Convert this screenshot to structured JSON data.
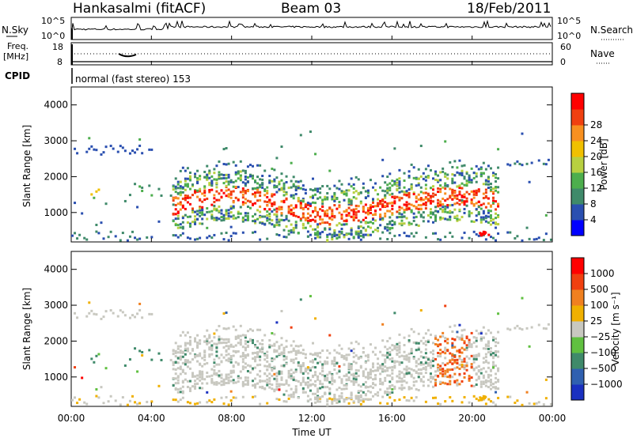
{
  "header": {
    "station": "Hankasalmi (fitACF)",
    "beam": "Beam 03",
    "date": "18/Feb/2011"
  },
  "top_panels": {
    "nsky_label": "N.Sky",
    "nsky_ticks": [
      "10^5",
      "10^0"
    ],
    "nsearch_label": "N.Search",
    "nsearch_ticks": [
      "10^5",
      "10^0"
    ],
    "freq_label": "Freq.",
    "freq_unit": "[MHz]",
    "freq_ticks": [
      "18",
      "8"
    ],
    "nave_label": "Nave",
    "nave_ticks": [
      "60",
      "0"
    ],
    "cpid_label": "CPID",
    "cpid_text": "normal (fast stereo) 153"
  },
  "chart_data": [
    {
      "type": "heatmap",
      "name": "power-panel",
      "ylabel": "Slant Range [km]",
      "xlabel": "Time UT",
      "ylim": [
        180,
        4500
      ],
      "xlim": [
        0,
        24
      ],
      "y_ticks": [
        "1000",
        "2000",
        "3000",
        "4000"
      ],
      "x_ticks": [
        "00:00",
        "04:00",
        "08:00",
        "12:00",
        "16:00",
        "20:00",
        "00:00"
      ],
      "colorbar": {
        "label": "Power [dB]",
        "ticks": [
          "4",
          "8",
          "12",
          "16",
          "20",
          "24",
          "28"
        ],
        "colors": [
          "#0000ff",
          "#2a4fb0",
          "#3f8a6a",
          "#4dae4d",
          "#b8d040",
          "#f0c000",
          "#f89020",
          "#f04010",
          "#ff0000"
        ]
      }
    },
    {
      "type": "heatmap",
      "name": "velocity-panel",
      "ylabel": "Slant Range [km]",
      "xlabel": "Time UT",
      "ylim": [
        180,
        4500
      ],
      "xlim": [
        0,
        24
      ],
      "y_ticks": [
        "1000",
        "2000",
        "3000",
        "4000"
      ],
      "x_ticks": [
        "00:00",
        "04:00",
        "08:00",
        "12:00",
        "16:00",
        "20:00",
        "00:00"
      ],
      "colorbar": {
        "label": "Velocity [m s⁻¹]",
        "ticks": [
          "1000",
          "500",
          "100",
          "25",
          "−25",
          "−100",
          "−500",
          "−1000"
        ],
        "colors": [
          "#1a30c0",
          "#3060b0",
          "#3f8a6a",
          "#60c040",
          "#c8c8c0",
          "#f0b000",
          "#f08020",
          "#f04010",
          "#ff0000"
        ]
      }
    }
  ],
  "x_axis": {
    "label": "Time UT",
    "ticks": [
      "00:00",
      "04:00",
      "08:00",
      "12:00",
      "16:00",
      "20:00",
      "00:00"
    ]
  }
}
